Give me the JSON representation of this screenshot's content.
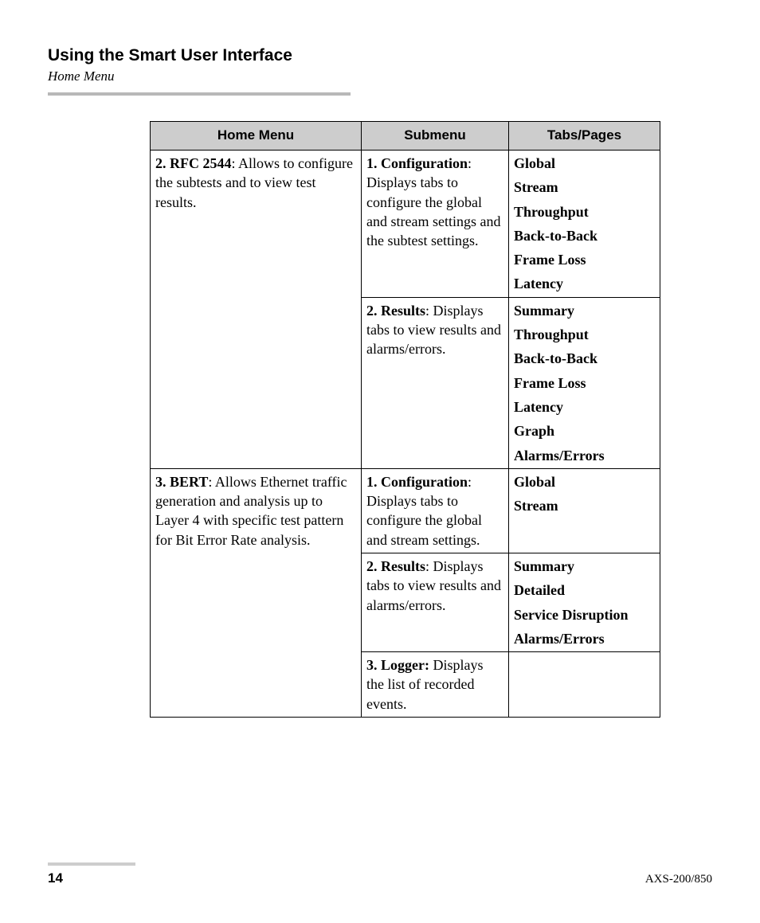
{
  "header": {
    "section_title": "Using the Smart User Interface",
    "section_sub": "Home Menu"
  },
  "table": {
    "headers": [
      "Home Menu",
      "Submenu",
      "Tabs/Pages"
    ],
    "groups": [
      {
        "home": {
          "label": "2. RFC 2544",
          "desc": ": Allows to configure the subtests and to view test results."
        },
        "subs": [
          {
            "label": "1. Configuration",
            "desc": ": Displays tabs to configure the global and stream settings and the subtest settings.",
            "tabs": [
              "Global",
              "Stream",
              "Throughput",
              "Back-to-Back",
              "Frame Loss",
              "Latency"
            ]
          },
          {
            "label": "2. Results",
            "desc": ": Displays tabs to view results and alarms/errors.",
            "tabs": [
              "Summary",
              "Throughput",
              "Back-to-Back",
              "Frame Loss",
              "Latency",
              "Graph",
              "Alarms/Errors"
            ]
          }
        ]
      },
      {
        "home": {
          "label": "3. BERT",
          "desc": ": Allows Ethernet traffic generation and analysis up to Layer 4 with specific test pattern for Bit Error Rate analysis."
        },
        "subs": [
          {
            "label": "1. Configuration",
            "desc": ": Displays tabs to configure the global and stream settings.",
            "tabs": [
              "Global",
              "Stream"
            ]
          },
          {
            "label": "2. Results",
            "desc": ": Displays tabs to view results and alarms/errors.",
            "tabs": [
              "Summary",
              "Detailed",
              "Service Disruption",
              "Alarms/Errors"
            ]
          },
          {
            "label": "3. Logger:",
            "desc": " Displays the list of recorded events.",
            "tabs": []
          }
        ]
      }
    ]
  },
  "footer": {
    "page_num": "14",
    "model": "AXS-200/850"
  }
}
